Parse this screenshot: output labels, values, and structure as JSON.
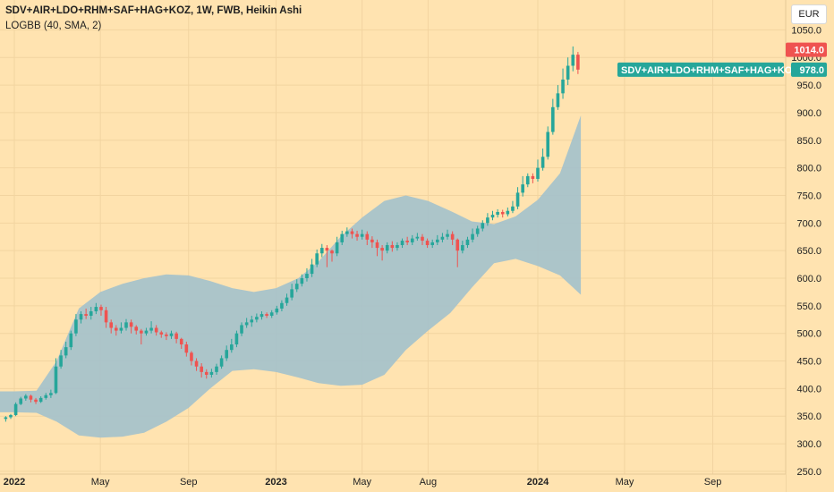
{
  "header": {
    "title": "SDV+AIR+LDO+RHM+SAF+HAG+KOZ, 1W, FWB, Heikin Ashi",
    "indicator": "LOGBB (40, SMA, 2)",
    "currency": "EUR"
  },
  "colors": {
    "background": "#ffe3b0",
    "up": "#26a69a",
    "down": "#ef5350",
    "band": "#a3c1cc"
  },
  "chart_data": {
    "type": "candlestick",
    "style": "Heikin Ashi",
    "interval": "1W",
    "exchange": "FWB",
    "symbol": "SDV+AIR+LDO+RHM+SAF+HAG+KOZ",
    "y_axis": {
      "side": "right",
      "ticks": [
        "1050.0",
        "1000.0",
        "950.0",
        "900.0",
        "850.0",
        "800.0",
        "750.0",
        "700.0",
        "650.0",
        "600.0",
        "550.0",
        "500.0",
        "450.0",
        "400.0",
        "350.0",
        "300.0",
        "250.0"
      ],
      "range": [
        245,
        1062
      ]
    },
    "x_axis": {
      "ticks": [
        {
          "label": "2022",
          "date": "2022-01-01",
          "year": true
        },
        {
          "label": "May",
          "date": "2022-05-01"
        },
        {
          "label": "Sep",
          "date": "2022-09-01"
        },
        {
          "label": "2023",
          "date": "2023-01-01",
          "year": true
        },
        {
          "label": "May",
          "date": "2023-05-01"
        },
        {
          "label": "Aug",
          "date": "2023-08-01"
        },
        {
          "label": "2024",
          "date": "2024-01-01",
          "year": true
        },
        {
          "label": "May",
          "date": "2024-05-01"
        },
        {
          "label": "Sep",
          "date": "2024-09-01"
        }
      ]
    },
    "price_labels": [
      {
        "value": "1014.0",
        "color": "#ef5350"
      },
      {
        "value": "978.0",
        "name": "SDV+AIR+LDO+RHM+SAF+HAG+KOZ",
        "color": "#26a69a"
      }
    ],
    "bollinger": {
      "upper": [
        [
          "2021-12-01",
          395
        ],
        [
          "2022-01-01",
          395
        ],
        [
          "2022-02-01",
          396
        ],
        [
          "2022-03-01",
          450
        ],
        [
          "2022-04-01",
          545
        ],
        [
          "2022-05-01",
          575
        ],
        [
          "2022-06-01",
          590
        ],
        [
          "2022-07-01",
          600
        ],
        [
          "2022-08-01",
          607
        ],
        [
          "2022-09-01",
          605
        ],
        [
          "2022-10-01",
          595
        ],
        [
          "2022-11-01",
          582
        ],
        [
          "2022-12-01",
          575
        ],
        [
          "2023-01-01",
          582
        ],
        [
          "2023-02-01",
          600
        ],
        [
          "2023-03-01",
          630
        ],
        [
          "2023-04-01",
          675
        ],
        [
          "2023-05-01",
          710
        ],
        [
          "2023-06-01",
          740
        ],
        [
          "2023-07-01",
          750
        ],
        [
          "2023-08-01",
          740
        ],
        [
          "2023-09-01",
          722
        ],
        [
          "2023-10-01",
          703
        ],
        [
          "2023-11-01",
          698
        ],
        [
          "2023-12-01",
          712
        ],
        [
          "2024-01-01",
          742
        ],
        [
          "2024-02-01",
          790
        ],
        [
          "2024-03-01",
          895
        ]
      ],
      "lower": [
        [
          "2021-12-01",
          357
        ],
        [
          "2022-01-01",
          357
        ],
        [
          "2022-02-01",
          356
        ],
        [
          "2022-03-01",
          340
        ],
        [
          "2022-04-01",
          315
        ],
        [
          "2022-05-01",
          311
        ],
        [
          "2022-06-01",
          313
        ],
        [
          "2022-07-01",
          320
        ],
        [
          "2022-08-01",
          340
        ],
        [
          "2022-09-01",
          365
        ],
        [
          "2022-10-01",
          400
        ],
        [
          "2022-11-01",
          432
        ],
        [
          "2022-12-01",
          435
        ],
        [
          "2023-01-01",
          430
        ],
        [
          "2023-02-01",
          420
        ],
        [
          "2023-03-01",
          410
        ],
        [
          "2023-04-01",
          405
        ],
        [
          "2023-05-01",
          407
        ],
        [
          "2023-06-01",
          425
        ],
        [
          "2023-07-01",
          470
        ],
        [
          "2023-08-01",
          505
        ],
        [
          "2023-09-01",
          537
        ],
        [
          "2023-10-01",
          583
        ],
        [
          "2023-11-01",
          627
        ],
        [
          "2023-12-01",
          635
        ],
        [
          "2024-01-01",
          622
        ],
        [
          "2024-02-01",
          605
        ],
        [
          "2024-03-01",
          570
        ]
      ]
    },
    "candles": [
      [
        "2021-12-20",
        345,
        348,
        340,
        350
      ],
      [
        "2021-12-27",
        348,
        352,
        345,
        354
      ],
      [
        "2022-01-03",
        352,
        372,
        350,
        375
      ],
      [
        "2022-01-10",
        372,
        382,
        370,
        385
      ],
      [
        "2022-01-17",
        382,
        387,
        378,
        390
      ],
      [
        "2022-01-24",
        387,
        380,
        375,
        389
      ],
      [
        "2022-01-31",
        380,
        376,
        372,
        383
      ],
      [
        "2022-02-07",
        376,
        383,
        374,
        386
      ],
      [
        "2022-02-14",
        383,
        388,
        380,
        392
      ],
      [
        "2022-02-21",
        388,
        392,
        383,
        398
      ],
      [
        "2022-02-28",
        392,
        440,
        390,
        455
      ],
      [
        "2022-03-07",
        440,
        460,
        436,
        470
      ],
      [
        "2022-03-14",
        460,
        475,
        455,
        485
      ],
      [
        "2022-03-21",
        475,
        500,
        470,
        505
      ],
      [
        "2022-03-28",
        500,
        525,
        495,
        535
      ],
      [
        "2022-04-04",
        525,
        535,
        518,
        540
      ],
      [
        "2022-04-11",
        535,
        532,
        526,
        545
      ],
      [
        "2022-04-18",
        532,
        540,
        525,
        548
      ],
      [
        "2022-04-25",
        540,
        548,
        535,
        555
      ],
      [
        "2022-05-02",
        548,
        542,
        532,
        552
      ],
      [
        "2022-05-09",
        542,
        520,
        510,
        548
      ],
      [
        "2022-05-16",
        520,
        510,
        500,
        525
      ],
      [
        "2022-05-23",
        510,
        505,
        496,
        515
      ],
      [
        "2022-05-30",
        505,
        510,
        500,
        520
      ],
      [
        "2022-06-06",
        510,
        520,
        505,
        526
      ],
      [
        "2022-06-13",
        520,
        512,
        500,
        525
      ],
      [
        "2022-06-20",
        512,
        505,
        498,
        515
      ],
      [
        "2022-06-27",
        505,
        500,
        480,
        508
      ],
      [
        "2022-07-04",
        500,
        505,
        496,
        510
      ],
      [
        "2022-07-11",
        505,
        510,
        500,
        522
      ],
      [
        "2022-07-18",
        510,
        502,
        496,
        515
      ],
      [
        "2022-07-25",
        502,
        498,
        492,
        505
      ],
      [
        "2022-08-01",
        498,
        495,
        488,
        502
      ],
      [
        "2022-08-08",
        495,
        500,
        490,
        505
      ],
      [
        "2022-08-15",
        500,
        490,
        482,
        503
      ],
      [
        "2022-08-22",
        490,
        480,
        472,
        492
      ],
      [
        "2022-08-29",
        480,
        465,
        458,
        485
      ],
      [
        "2022-09-05",
        465,
        450,
        442,
        468
      ],
      [
        "2022-09-12",
        450,
        440,
        432,
        455
      ],
      [
        "2022-09-19",
        440,
        430,
        420,
        446
      ],
      [
        "2022-09-26",
        430,
        425,
        418,
        435
      ],
      [
        "2022-10-03",
        425,
        430,
        420,
        436
      ],
      [
        "2022-10-10",
        430,
        440,
        425,
        445
      ],
      [
        "2022-10-17",
        440,
        455,
        436,
        460
      ],
      [
        "2022-10-24",
        455,
        470,
        450,
        478
      ],
      [
        "2022-10-31",
        470,
        480,
        465,
        490
      ],
      [
        "2022-11-07",
        480,
        500,
        475,
        505
      ],
      [
        "2022-11-14",
        500,
        515,
        495,
        520
      ],
      [
        "2022-11-21",
        515,
        520,
        510,
        528
      ],
      [
        "2022-11-28",
        520,
        525,
        512,
        532
      ],
      [
        "2022-12-05",
        525,
        530,
        520,
        536
      ],
      [
        "2022-12-12",
        530,
        535,
        525,
        540
      ],
      [
        "2022-12-19",
        535,
        532,
        528,
        538
      ],
      [
        "2022-12-26",
        532,
        538,
        528,
        542
      ],
      [
        "2023-01-02",
        538,
        545,
        534,
        550
      ],
      [
        "2023-01-09",
        545,
        555,
        540,
        560
      ],
      [
        "2023-01-16",
        555,
        565,
        550,
        572
      ],
      [
        "2023-01-23",
        565,
        580,
        560,
        590
      ],
      [
        "2023-01-30",
        580,
        590,
        575,
        598
      ],
      [
        "2023-02-06",
        590,
        600,
        585,
        607
      ],
      [
        "2023-02-13",
        600,
        608,
        594,
        618
      ],
      [
        "2023-02-20",
        608,
        625,
        602,
        635
      ],
      [
        "2023-02-27",
        625,
        645,
        620,
        652
      ],
      [
        "2023-03-06",
        645,
        655,
        638,
        662
      ],
      [
        "2023-03-13",
        655,
        650,
        620,
        660
      ],
      [
        "2023-03-20",
        650,
        645,
        630,
        652
      ],
      [
        "2023-03-27",
        645,
        665,
        640,
        675
      ],
      [
        "2023-04-03",
        665,
        680,
        660,
        686
      ],
      [
        "2023-04-10",
        680,
        685,
        675,
        692
      ],
      [
        "2023-04-17",
        685,
        680,
        672,
        690
      ],
      [
        "2023-04-24",
        680,
        675,
        668,
        686
      ],
      [
        "2023-05-01",
        675,
        680,
        670,
        688
      ],
      [
        "2023-05-08",
        680,
        670,
        660,
        685
      ],
      [
        "2023-05-15",
        670,
        665,
        655,
        676
      ],
      [
        "2023-05-22",
        665,
        655,
        640,
        670
      ],
      [
        "2023-05-29",
        655,
        650,
        632,
        660
      ],
      [
        "2023-06-05",
        650,
        660,
        645,
        665
      ],
      [
        "2023-06-12",
        660,
        655,
        648,
        667
      ],
      [
        "2023-06-19",
        655,
        660,
        650,
        665
      ],
      [
        "2023-06-26",
        660,
        668,
        655,
        672
      ],
      [
        "2023-07-03",
        668,
        665,
        660,
        675
      ],
      [
        "2023-07-10",
        665,
        672,
        660,
        678
      ],
      [
        "2023-07-17",
        672,
        675,
        668,
        682
      ],
      [
        "2023-07-24",
        675,
        668,
        660,
        680
      ],
      [
        "2023-07-31",
        668,
        660,
        655,
        672
      ],
      [
        "2023-08-07",
        660,
        665,
        655,
        670
      ],
      [
        "2023-08-14",
        665,
        670,
        660,
        678
      ],
      [
        "2023-08-21",
        670,
        675,
        665,
        682
      ],
      [
        "2023-08-28",
        675,
        680,
        670,
        688
      ],
      [
        "2023-09-04",
        680,
        670,
        660,
        685
      ],
      [
        "2023-09-11",
        670,
        650,
        620,
        672
      ],
      [
        "2023-09-18",
        650,
        660,
        645,
        668
      ],
      [
        "2023-09-25",
        660,
        670,
        655,
        675
      ],
      [
        "2023-10-02",
        670,
        680,
        665,
        690
      ],
      [
        "2023-10-09",
        680,
        690,
        675,
        695
      ],
      [
        "2023-10-16",
        690,
        700,
        685,
        705
      ],
      [
        "2023-10-23",
        700,
        710,
        695,
        718
      ],
      [
        "2023-10-30",
        710,
        715,
        705,
        722
      ],
      [
        "2023-11-06",
        715,
        720,
        710,
        725
      ],
      [
        "2023-11-13",
        720,
        716,
        710,
        724
      ],
      [
        "2023-11-20",
        716,
        722,
        712,
        728
      ],
      [
        "2023-11-27",
        722,
        730,
        718,
        740
      ],
      [
        "2023-12-04",
        730,
        755,
        725,
        765
      ],
      [
        "2023-12-11",
        755,
        770,
        748,
        785
      ],
      [
        "2023-12-18",
        770,
        785,
        765,
        790
      ],
      [
        "2023-12-25",
        785,
        780,
        772,
        790
      ],
      [
        "2024-01-01",
        780,
        800,
        775,
        815
      ],
      [
        "2024-01-08",
        800,
        820,
        795,
        835
      ],
      [
        "2024-01-15",
        820,
        865,
        815,
        875
      ],
      [
        "2024-01-22",
        865,
        910,
        860,
        925
      ],
      [
        "2024-01-29",
        910,
        935,
        905,
        950
      ],
      [
        "2024-02-05",
        935,
        960,
        925,
        980
      ],
      [
        "2024-02-12",
        960,
        985,
        950,
        1000
      ],
      [
        "2024-02-19",
        985,
        1005,
        975,
        1020
      ],
      [
        "2024-02-26",
        1005,
        978,
        970,
        1010
      ]
    ]
  }
}
